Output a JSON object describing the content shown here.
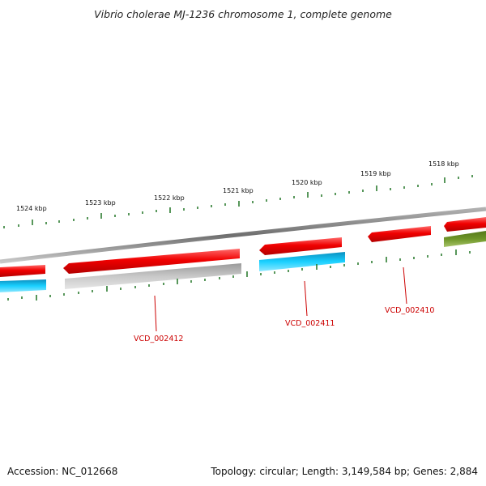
{
  "title": "Vibrio cholerae MJ-1236 chromosome 1, complete genome",
  "footer": {
    "accession": "Accession: NC_012668",
    "topology": "Topology: circular; Length: 3,149,584 bp; Genes: 2,884"
  },
  "scale": {
    "unit": "kbp",
    "labels": [
      "1524 kbp",
      "1523 kbp",
      "1522 kbp",
      "1521 kbp",
      "1520 kbp",
      "1519 kbp",
      "1518 kbp"
    ]
  },
  "genes": [
    {
      "name": "VCD_002412",
      "color": "#ff1a1a"
    },
    {
      "name": "VCD_002411",
      "color": "#00b3e6"
    },
    {
      "name": "VCD_002410",
      "color": "#ff3333"
    }
  ],
  "colors": {
    "backbone": "#808080",
    "forward_gene": "#e60000",
    "reverse_gene_cyan": "#1ac6f0",
    "reverse_gene_gray": "#c0c0c0",
    "reverse_gene_olive": "#6b8e23",
    "ticks": "#2e7d32",
    "label": "#cc0000"
  }
}
